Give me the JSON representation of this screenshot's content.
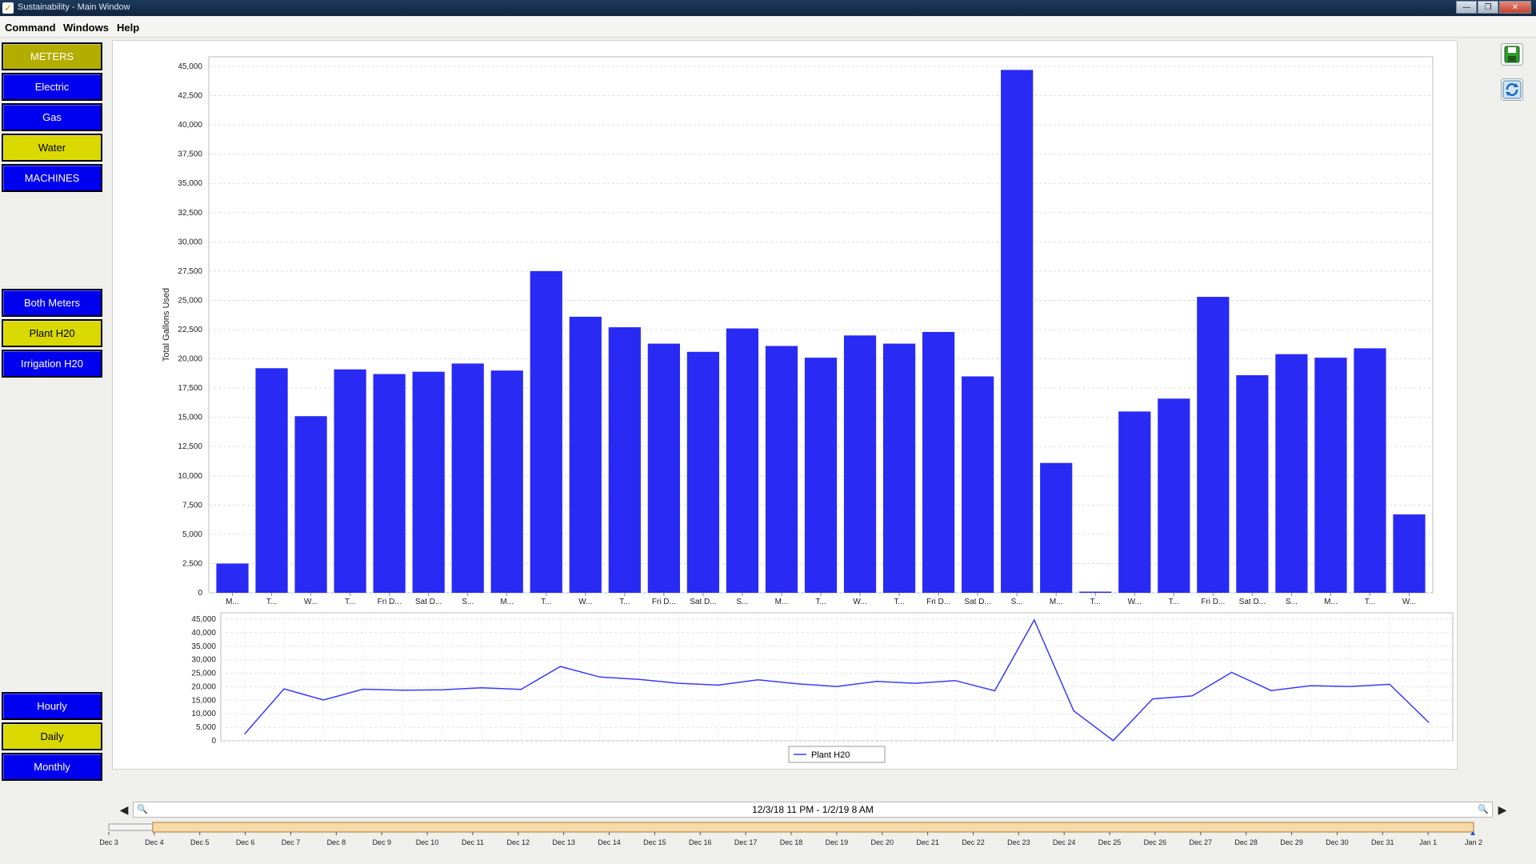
{
  "window": {
    "title": "Sustainability - Main Window"
  },
  "menu": {
    "items": [
      "Command",
      "Windows",
      "Help"
    ]
  },
  "sidebar": {
    "meters_label": "METERS",
    "electric_label": "Electric",
    "gas_label": "Gas",
    "water_label": "Water",
    "machines_label": "MACHINES",
    "both_meters_label": "Both Meters",
    "plant_label": "Plant H20",
    "irrigation_label": "Irrigation H20",
    "hourly_label": "Hourly",
    "daily_label": "Daily",
    "monthly_label": "Monthly"
  },
  "colors": {
    "bar": "#2a2af5",
    "line": "#3a3aff",
    "selected": "#d9d900",
    "button": "#0000f0"
  },
  "chart_data": [
    {
      "type": "bar",
      "ylabel": "Total Gallons Used",
      "ylim": [
        0,
        45000
      ],
      "yticks": [
        "0",
        "2,500",
        "5,000",
        "7,500",
        "10,000",
        "12,500",
        "15,000",
        "17,500",
        "20,000",
        "22,500",
        "25,000",
        "27,500",
        "30,000",
        "32,500",
        "35,000",
        "37,500",
        "40,000",
        "42,500",
        "45,000"
      ],
      "categories": [
        "M...",
        "T...",
        "W...",
        "T...",
        "Fri D...",
        "Sat D...",
        "S...",
        "M...",
        "T...",
        "W...",
        "T...",
        "Fri D...",
        "Sat D...",
        "S...",
        "M...",
        "T...",
        "W...",
        "T...",
        "Fri D...",
        "Sat D...",
        "S...",
        "M...",
        "T...",
        "W...",
        "T...",
        "Fri D...",
        "Sat D...",
        "S...",
        "M...",
        "T...",
        "W..."
      ],
      "values": [
        2500,
        19200,
        15100,
        19100,
        18700,
        18900,
        19600,
        19000,
        27500,
        23600,
        22700,
        21300,
        20600,
        22600,
        21100,
        20100,
        22000,
        21300,
        22300,
        18500,
        44700,
        11100,
        100,
        15500,
        16600,
        25300,
        18600,
        20400,
        20100,
        20900,
        6700
      ]
    },
    {
      "type": "line",
      "ylim": [
        0,
        45000
      ],
      "yticks": [
        "0",
        "5,000",
        "10,000",
        "15,000",
        "20,000",
        "25,000",
        "30,000",
        "35,000",
        "40,000",
        "45,000"
      ],
      "series": [
        {
          "name": "Plant H20",
          "values": [
            2500,
            19200,
            15100,
            19100,
            18700,
            18900,
            19600,
            19000,
            27500,
            23600,
            22700,
            21300,
            20600,
            22600,
            21100,
            20100,
            22000,
            21300,
            22300,
            18500,
            44700,
            11100,
            100,
            15500,
            16600,
            25300,
            18600,
            20400,
            20100,
            20900,
            6700
          ]
        }
      ],
      "legend": "bottom-center"
    }
  ],
  "timeline": {
    "range_label": "12/3/18 11 PM - 1/2/19 8 AM",
    "dates": [
      "Dec 3",
      "Dec 4",
      "Dec 5",
      "Dec 6",
      "Dec 7",
      "Dec 8",
      "Dec 9",
      "Dec 10",
      "Dec 11",
      "Dec 12",
      "Dec 13",
      "Dec 14",
      "Dec 15",
      "Dec 16",
      "Dec 17",
      "Dec 18",
      "Dec 19",
      "Dec 20",
      "Dec 21",
      "Dec 22",
      "Dec 23",
      "Dec 24",
      "Dec 25",
      "Dec 26",
      "Dec 27",
      "Dec 28",
      "Dec 29",
      "Dec 30",
      "Dec 31",
      "Jan 1",
      "Jan 2"
    ]
  }
}
